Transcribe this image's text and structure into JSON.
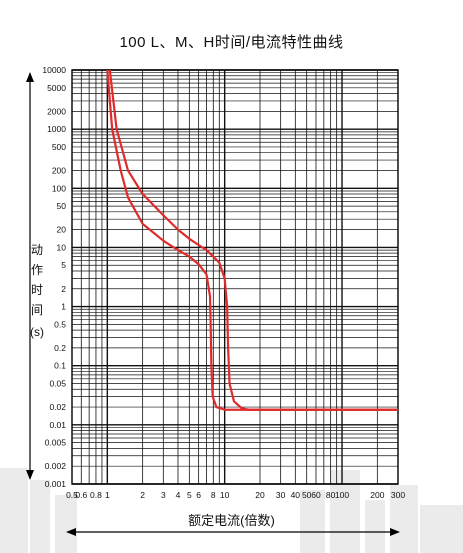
{
  "title": "100 L、M、H时间/电流特性曲线",
  "colors": {
    "curve": "#e02b2b",
    "grid": "#111111",
    "axis": "#000000",
    "watermark": "#e9e9e9"
  },
  "chart_data": {
    "type": "line",
    "title": "100 L、M、H时间/电流特性曲线",
    "xlabel": "额定电流(倍数)",
    "ylabel": "动作时间(s)",
    "ylabel_chars": [
      "动",
      "作",
      "时",
      "间",
      "(s)"
    ],
    "xscale": "log",
    "yscale": "log",
    "xlim": [
      0.5,
      300
    ],
    "ylim": [
      0.001,
      10000
    ],
    "grid": true,
    "x_ticks": [
      0.5,
      0.6,
      0.8,
      1,
      2,
      3,
      4,
      5,
      6,
      8,
      10,
      20,
      30,
      40,
      50,
      60,
      80,
      100,
      200,
      300
    ],
    "x_tick_labels": [
      "0.5",
      "0.6",
      "0.8",
      "1",
      "2",
      "3",
      "4",
      "5",
      "6",
      "8",
      "10",
      "20",
      "30",
      "40",
      "50",
      "60",
      "80",
      "100",
      "200",
      "300"
    ],
    "y_ticks": [
      10000,
      5000,
      2000,
      1000,
      500,
      200,
      100,
      50,
      20,
      10,
      5,
      2,
      1,
      0.5,
      0.2,
      0.1,
      0.05,
      0.02,
      0.01,
      0.005,
      0.002,
      0.001
    ],
    "y_tick_labels": [
      "10000",
      "5000",
      "2000",
      "1000",
      "500",
      "200",
      "100",
      "50",
      "20",
      "10",
      "5",
      "2",
      "1",
      "0.5",
      "0.2",
      "0.1",
      "0.05",
      "0.02",
      "0.01",
      "0.005",
      "0.002",
      "0.001"
    ],
    "series": [
      {
        "points": [
          [
            1.0,
            10000
          ],
          [
            1.1,
            1000
          ],
          [
            1.3,
            200
          ],
          [
            1.5,
            70
          ],
          [
            2,
            25
          ],
          [
            3,
            13
          ],
          [
            4,
            9
          ],
          [
            5,
            7
          ],
          [
            6,
            5.2
          ],
          [
            7,
            3.5
          ],
          [
            7.5,
            1.5
          ],
          [
            7.6,
            0.5
          ],
          [
            7.7,
            0.1
          ],
          [
            7.9,
            0.03
          ],
          [
            8.5,
            0.02
          ],
          [
            10,
            0.018
          ],
          [
            300,
            0.018
          ]
        ]
      },
      {
        "points": [
          [
            1.05,
            10000
          ],
          [
            1.2,
            1000
          ],
          [
            1.5,
            200
          ],
          [
            2,
            80
          ],
          [
            3,
            35
          ],
          [
            4,
            20
          ],
          [
            5,
            14
          ],
          [
            6,
            11
          ],
          [
            7,
            9
          ],
          [
            8,
            7
          ],
          [
            9,
            5.5
          ],
          [
            10,
            3
          ],
          [
            10.5,
            1
          ],
          [
            10.7,
            0.2
          ],
          [
            11,
            0.05
          ],
          [
            12,
            0.025
          ],
          [
            14,
            0.019
          ],
          [
            16,
            0.018
          ],
          [
            300,
            0.018
          ]
        ]
      }
    ]
  }
}
